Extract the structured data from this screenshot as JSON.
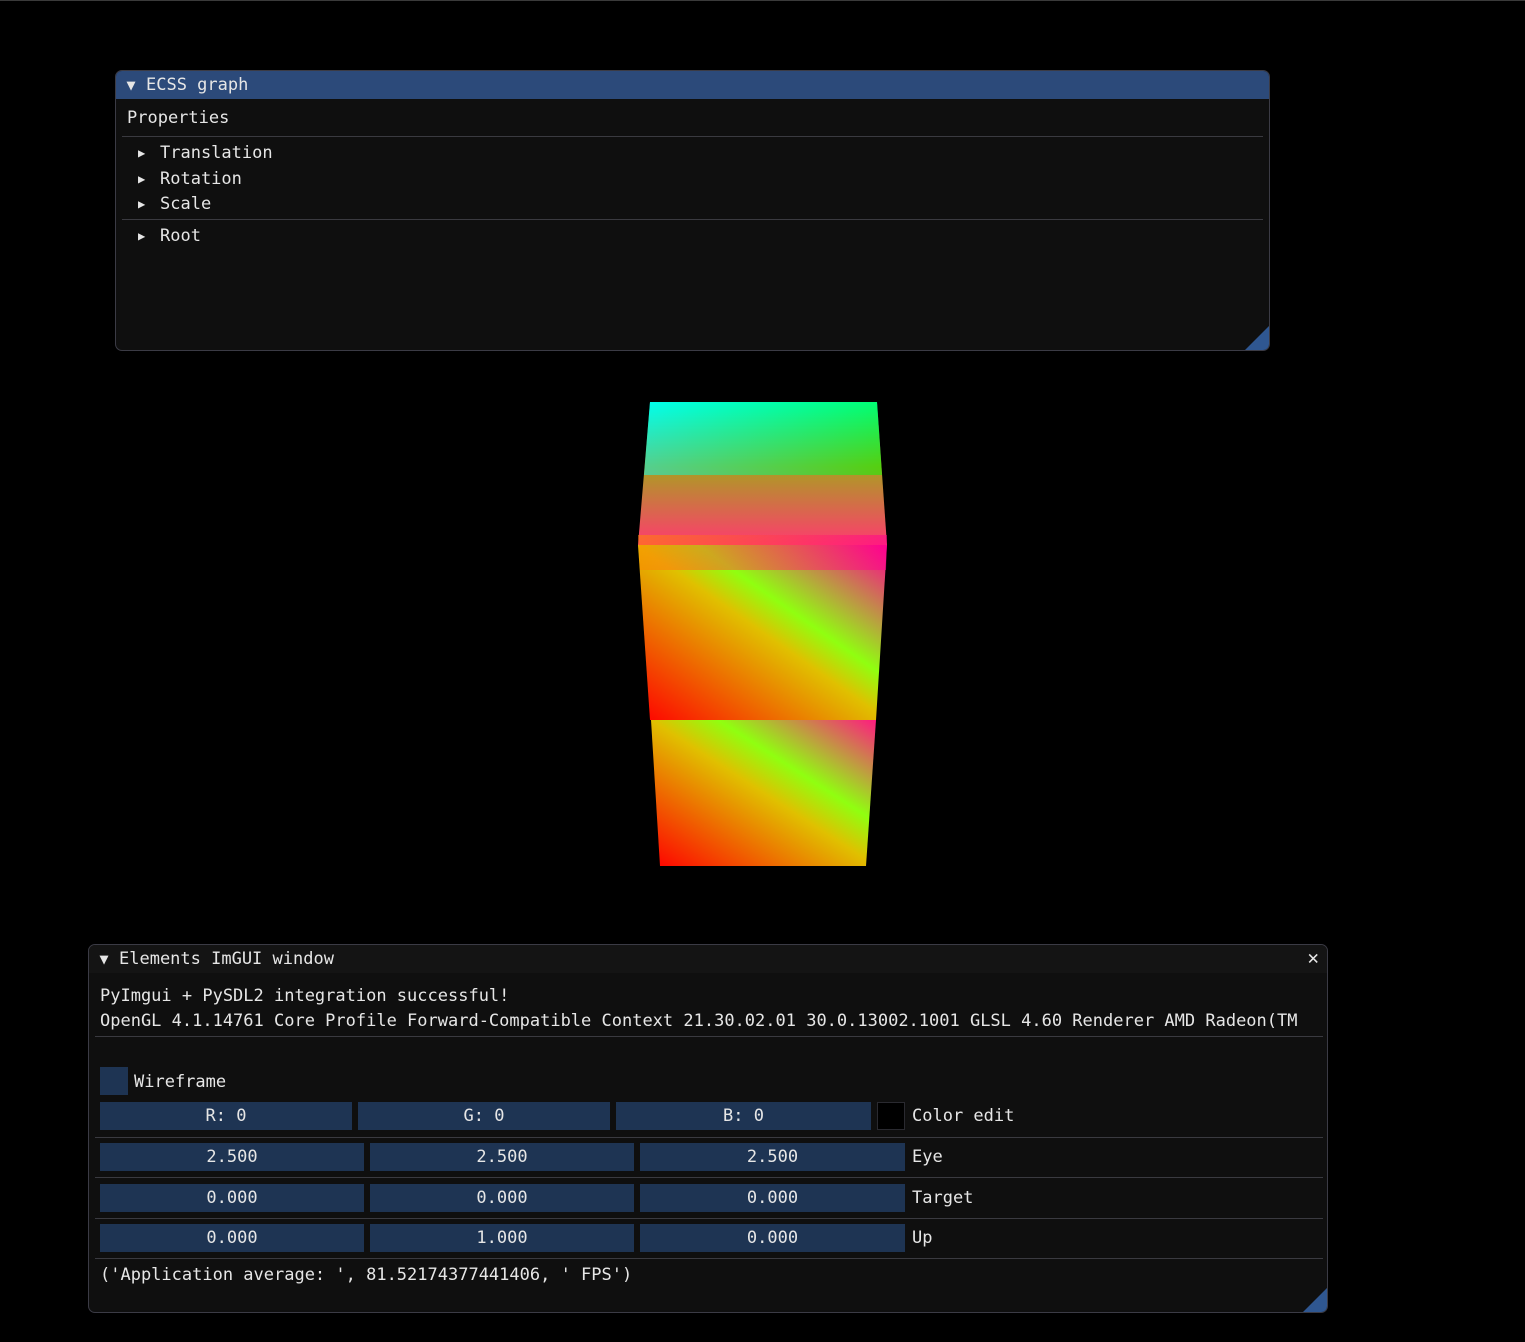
{
  "ecss_window": {
    "title": "ECSS graph",
    "collapse_glyph": "▼",
    "title_bg": "#2c4a7a",
    "properties_label": "Properties",
    "property_items": [
      "Translation",
      "Rotation",
      "Scale"
    ],
    "root_label": "Root",
    "tree_glyph": "▶"
  },
  "viewport": {
    "object": "gradient-colored 3D shape",
    "colors": [
      "#00ffff",
      "#00ff00",
      "#ff8c00",
      "#ff0080",
      "#ff0000",
      "#80ff00"
    ]
  },
  "elements_window": {
    "title": "Elements ImGUI window",
    "collapse_glyph": "▼",
    "close_glyph": "✕",
    "title_bg": "#141414",
    "info_line": "PyImgui + PySDL2 integration successful!",
    "gl_info": "OpenGL 4.1.14761 Core Profile Forward-Compatible Context 21.30.02.01 30.0.13002.1001 GLSL 4.60 Renderer AMD Radeon(TM",
    "wireframe_label": "Wireframe",
    "wireframe_checked": false,
    "color": {
      "r": "R:  0",
      "g": "G:  0",
      "b": "B:  0",
      "swatch": "#000000",
      "label": "Color edit"
    },
    "eye": {
      "values": [
        "2.500",
        "2.500",
        "2.500"
      ],
      "label": "Eye"
    },
    "target": {
      "values": [
        "0.000",
        "0.000",
        "0.000"
      ],
      "label": "Target"
    },
    "up": {
      "values": [
        "0.000",
        "1.000",
        "0.000"
      ],
      "label": "Up"
    },
    "fps_text": "('Application average: ', 81.52174377441406, ' FPS')"
  }
}
